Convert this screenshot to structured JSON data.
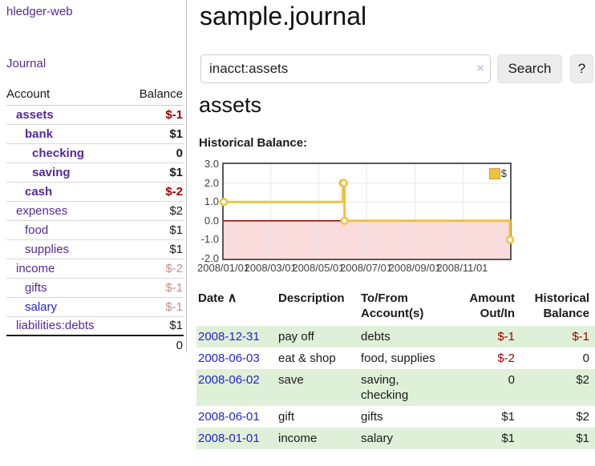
{
  "app": {
    "brand": "hledger-web",
    "nav_journal": "Journal"
  },
  "colors": {
    "accent_purple": "#54299b",
    "link_blue": "#2323cf",
    "negative_strong": "#a00000",
    "negative_soft": "#c98b8b",
    "row_stripe_green": "#dff0d8",
    "chart_line_yellow": "#edc240",
    "chart_negative_region": "#fbdcdc",
    "chart_zero_line": "#8b0000"
  },
  "sidebar": {
    "accounts_header": {
      "account": "Account",
      "balance": "Balance"
    },
    "accounts": [
      {
        "label": "assets",
        "balance": "$-1",
        "indent": 1,
        "bold": true,
        "link_color": "purple",
        "balance_class": "neg-strong"
      },
      {
        "label": "bank",
        "balance": "$1",
        "indent": 2,
        "bold": true,
        "link_color": "purple",
        "balance_class": "plain"
      },
      {
        "label": "checking",
        "balance": "0",
        "indent": 3,
        "bold": true,
        "link_color": "purple",
        "balance_class": "plain"
      },
      {
        "label": "saving",
        "balance": "$1",
        "indent": 3,
        "bold": true,
        "link_color": "purple",
        "balance_class": "plain"
      },
      {
        "label": "cash",
        "balance": "$-2",
        "indent": 2,
        "bold": true,
        "link_color": "purple",
        "balance_class": "neg-strong"
      },
      {
        "label": "expenses",
        "balance": "$2",
        "indent": 1,
        "bold": false,
        "link_color": "purple",
        "balance_class": "plain"
      },
      {
        "label": "food",
        "balance": "$1",
        "indent": 2,
        "bold": false,
        "link_color": "purple",
        "balance_class": "plain"
      },
      {
        "label": "supplies",
        "balance": "$1",
        "indent": 2,
        "bold": false,
        "link_color": "purple",
        "balance_class": "plain"
      },
      {
        "label": "income",
        "balance": "$-2",
        "indent": 1,
        "bold": false,
        "link_color": "purple",
        "balance_class": "neg-soft"
      },
      {
        "label": "gifts",
        "balance": "$-1",
        "indent": 2,
        "bold": false,
        "link_color": "purple",
        "balance_class": "neg-soft"
      },
      {
        "label": "salary",
        "balance": "$-1",
        "indent": 2,
        "bold": false,
        "link_color": "blue",
        "balance_class": "neg-soft"
      },
      {
        "label": "liabilities:debts",
        "balance": "$1",
        "indent": 1,
        "bold": false,
        "link_color": "purple",
        "balance_class": "plain"
      }
    ],
    "total": "0"
  },
  "main": {
    "title": "sample.journal",
    "search": {
      "value": "inacct:assets",
      "clear_icon": "×",
      "search_label": "Search",
      "help_label": "?"
    },
    "account_heading": "assets",
    "chart_label": "Historical Balance:"
  },
  "chart_data": {
    "type": "line",
    "step": true,
    "title": "Historical Balance",
    "series": [
      {
        "name": "$",
        "points": [
          [
            "2008-01-01",
            1
          ],
          [
            "2008-06-01",
            2
          ],
          [
            "2008-06-02",
            2
          ],
          [
            "2008-06-03",
            0
          ],
          [
            "2008-12-31",
            -1
          ]
        ]
      }
    ],
    "ylim": [
      -2,
      3
    ],
    "ytick_labels": [
      "3.0",
      "2.0",
      "1.0",
      "0.0",
      "-1.0",
      "-2.0"
    ],
    "xtick_labels": [
      "2008/01/01",
      "2008/03/01",
      "2008/05/01",
      "2008/07/01",
      "2008/09/01",
      "2008/11/01"
    ],
    "grid": true,
    "legend": {
      "position": "top-right",
      "entries": [
        "$"
      ]
    }
  },
  "register": {
    "headers": {
      "date": "Date",
      "sort_icon": "∧",
      "description": "Description",
      "tofrom_line1": "To/From",
      "tofrom_line2": "Account(s)",
      "amount_line1": "Amount",
      "amount_line2": "Out/In",
      "balance_line1": "Historical",
      "balance_line2": "Balance"
    },
    "rows": [
      {
        "date": "2008-12-31",
        "description": "pay off",
        "accounts": "debts",
        "amount": "$-1",
        "balance": "$-1",
        "amount_neg": true,
        "balance_neg": true,
        "shaded": true
      },
      {
        "date": "2008-06-03",
        "description": "eat & shop",
        "accounts": "food, supplies",
        "amount": "$-2",
        "balance": "0",
        "amount_neg": true,
        "balance_neg": false,
        "shaded": false
      },
      {
        "date": "2008-06-02",
        "description": "save",
        "accounts": "saving, checking",
        "amount": "0",
        "balance": "$2",
        "amount_neg": false,
        "balance_neg": false,
        "shaded": true
      },
      {
        "date": "2008-06-01",
        "description": "gift",
        "accounts": "gifts",
        "amount": "$1",
        "balance": "$2",
        "amount_neg": false,
        "balance_neg": false,
        "shaded": false
      },
      {
        "date": "2008-01-01",
        "description": "income",
        "accounts": "salary",
        "amount": "$1",
        "balance": "$1",
        "amount_neg": false,
        "balance_neg": false,
        "shaded": true
      }
    ]
  }
}
